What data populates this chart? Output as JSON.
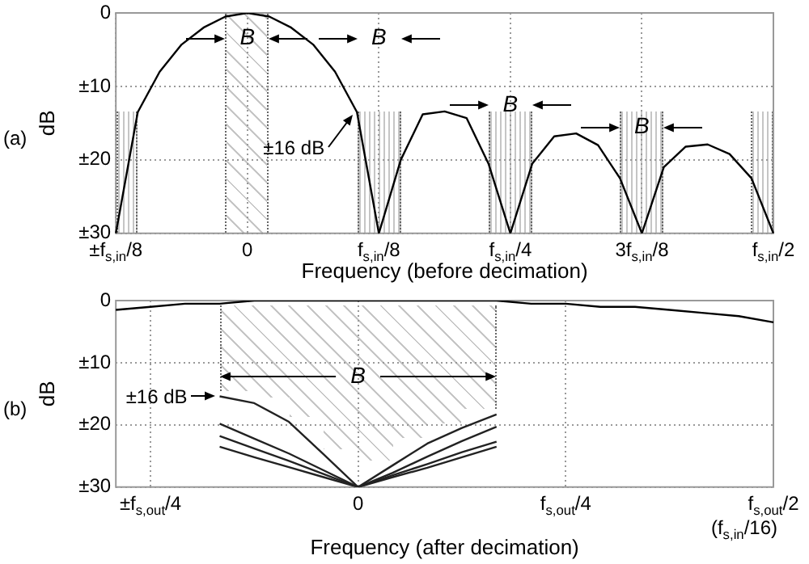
{
  "chart_data": [
    {
      "type": "line",
      "xlabel": "Frequency (before decimation)",
      "ylabel": "dB",
      "annotations": [
        "(a)",
        "B",
        "B",
        "B",
        "B",
        "±16 dB"
      ],
      "categories": [
        "±f$_{s,in}$/8",
        null,
        null,
        null,
        null,
        null,
        "0",
        null,
        null,
        null,
        null,
        null,
        "f$_{s,in}$/8",
        null,
        null,
        null,
        null,
        null,
        "f$_{s,in}$/4",
        null,
        null,
        null,
        null,
        null,
        "3f$_{s,in}$/8",
        null,
        null,
        null,
        null,
        null,
        "f$_{s,in}$/2"
      ],
      "ylim": [
        -30,
        0
      ],
      "yticks": [
        0,
        {
          "value": -10,
          "label": "±10"
        },
        {
          "value": -20,
          "label": "±20"
        },
        {
          "value": -30,
          "label": "±30"
        }
      ],
      "grid": true,
      "legend": false,
      "marker": "none",
      "series": [
        {
          "color": "#000000",
          "values": [
            -30,
            -13.5,
            -8,
            -4.3,
            -2,
            -0.5,
            0,
            -0.5,
            -2,
            -4.3,
            -8,
            -13.5,
            -30,
            -20,
            -13.8,
            -13.4,
            -14.3,
            -20.5,
            -30,
            -20.5,
            -16.8,
            -16.4,
            -18,
            -22.5,
            -30,
            -21,
            -18.2,
            -17.9,
            -19.2,
            -22.5,
            -30
          ]
        }
      ]
    },
    {
      "type": "line",
      "xlabel": "Frequency (after decimation)",
      "ylabel": "dB",
      "annotations": [
        "(b)",
        "B",
        "±16 dB",
        "(f$_{s,in}$/16)"
      ],
      "categories": [
        null,
        "±f$_{s,out}$/4",
        null,
        null,
        null,
        null,
        null,
        "0",
        null,
        null,
        null,
        null,
        null,
        "f$_{s,out}$/4",
        null,
        null,
        null,
        null,
        null,
        "f$_{s,out}$/2"
      ],
      "ylim": [
        -30,
        0
      ],
      "yticks": [
        0,
        {
          "value": -10,
          "label": "±10"
        },
        {
          "value": -20,
          "label": "±20"
        },
        {
          "value": -30,
          "label": "±30"
        }
      ],
      "grid": true,
      "legend": false,
      "marker": "none",
      "series": [
        {
          "color": "#000000",
          "values": [
            -1.5,
            -1,
            -0.5,
            -0.5,
            0,
            0,
            0,
            0,
            0,
            0,
            0,
            0,
            -0.5,
            -0.5,
            -1,
            -1,
            -1.5,
            -2,
            -2.5,
            -3.5
          ]
        },
        {
          "color": "#222222",
          "values": [
            null,
            null,
            null,
            -15.4,
            -16.5,
            -19.5,
            -24.7,
            -30,
            -26.5,
            -23,
            -20.5,
            -18.3,
            null,
            null,
            null,
            null,
            null,
            null,
            null,
            null
          ]
        },
        {
          "color": "#222222",
          "values": [
            null,
            null,
            null,
            -19.8,
            -22.2,
            -24.6,
            -27.3,
            -30,
            -27.7,
            -25.1,
            -22.6,
            -20.3,
            null,
            null,
            null,
            null,
            null,
            null,
            null,
            null
          ]
        },
        {
          "color": "#222222",
          "values": [
            null,
            null,
            null,
            -21.8,
            -23.8,
            -25.8,
            -27.9,
            -30,
            -28.1,
            -26.3,
            -24.4,
            -22.7,
            null,
            null,
            null,
            null,
            null,
            null,
            null,
            null
          ]
        },
        {
          "color": "#222222",
          "values": [
            null,
            null,
            null,
            -23.5,
            -25.2,
            -26.8,
            -28.4,
            -30,
            -28.4,
            -26.9,
            -25.2,
            -23.5,
            null,
            null,
            null,
            null,
            null,
            null,
            null,
            null
          ]
        }
      ]
    }
  ]
}
